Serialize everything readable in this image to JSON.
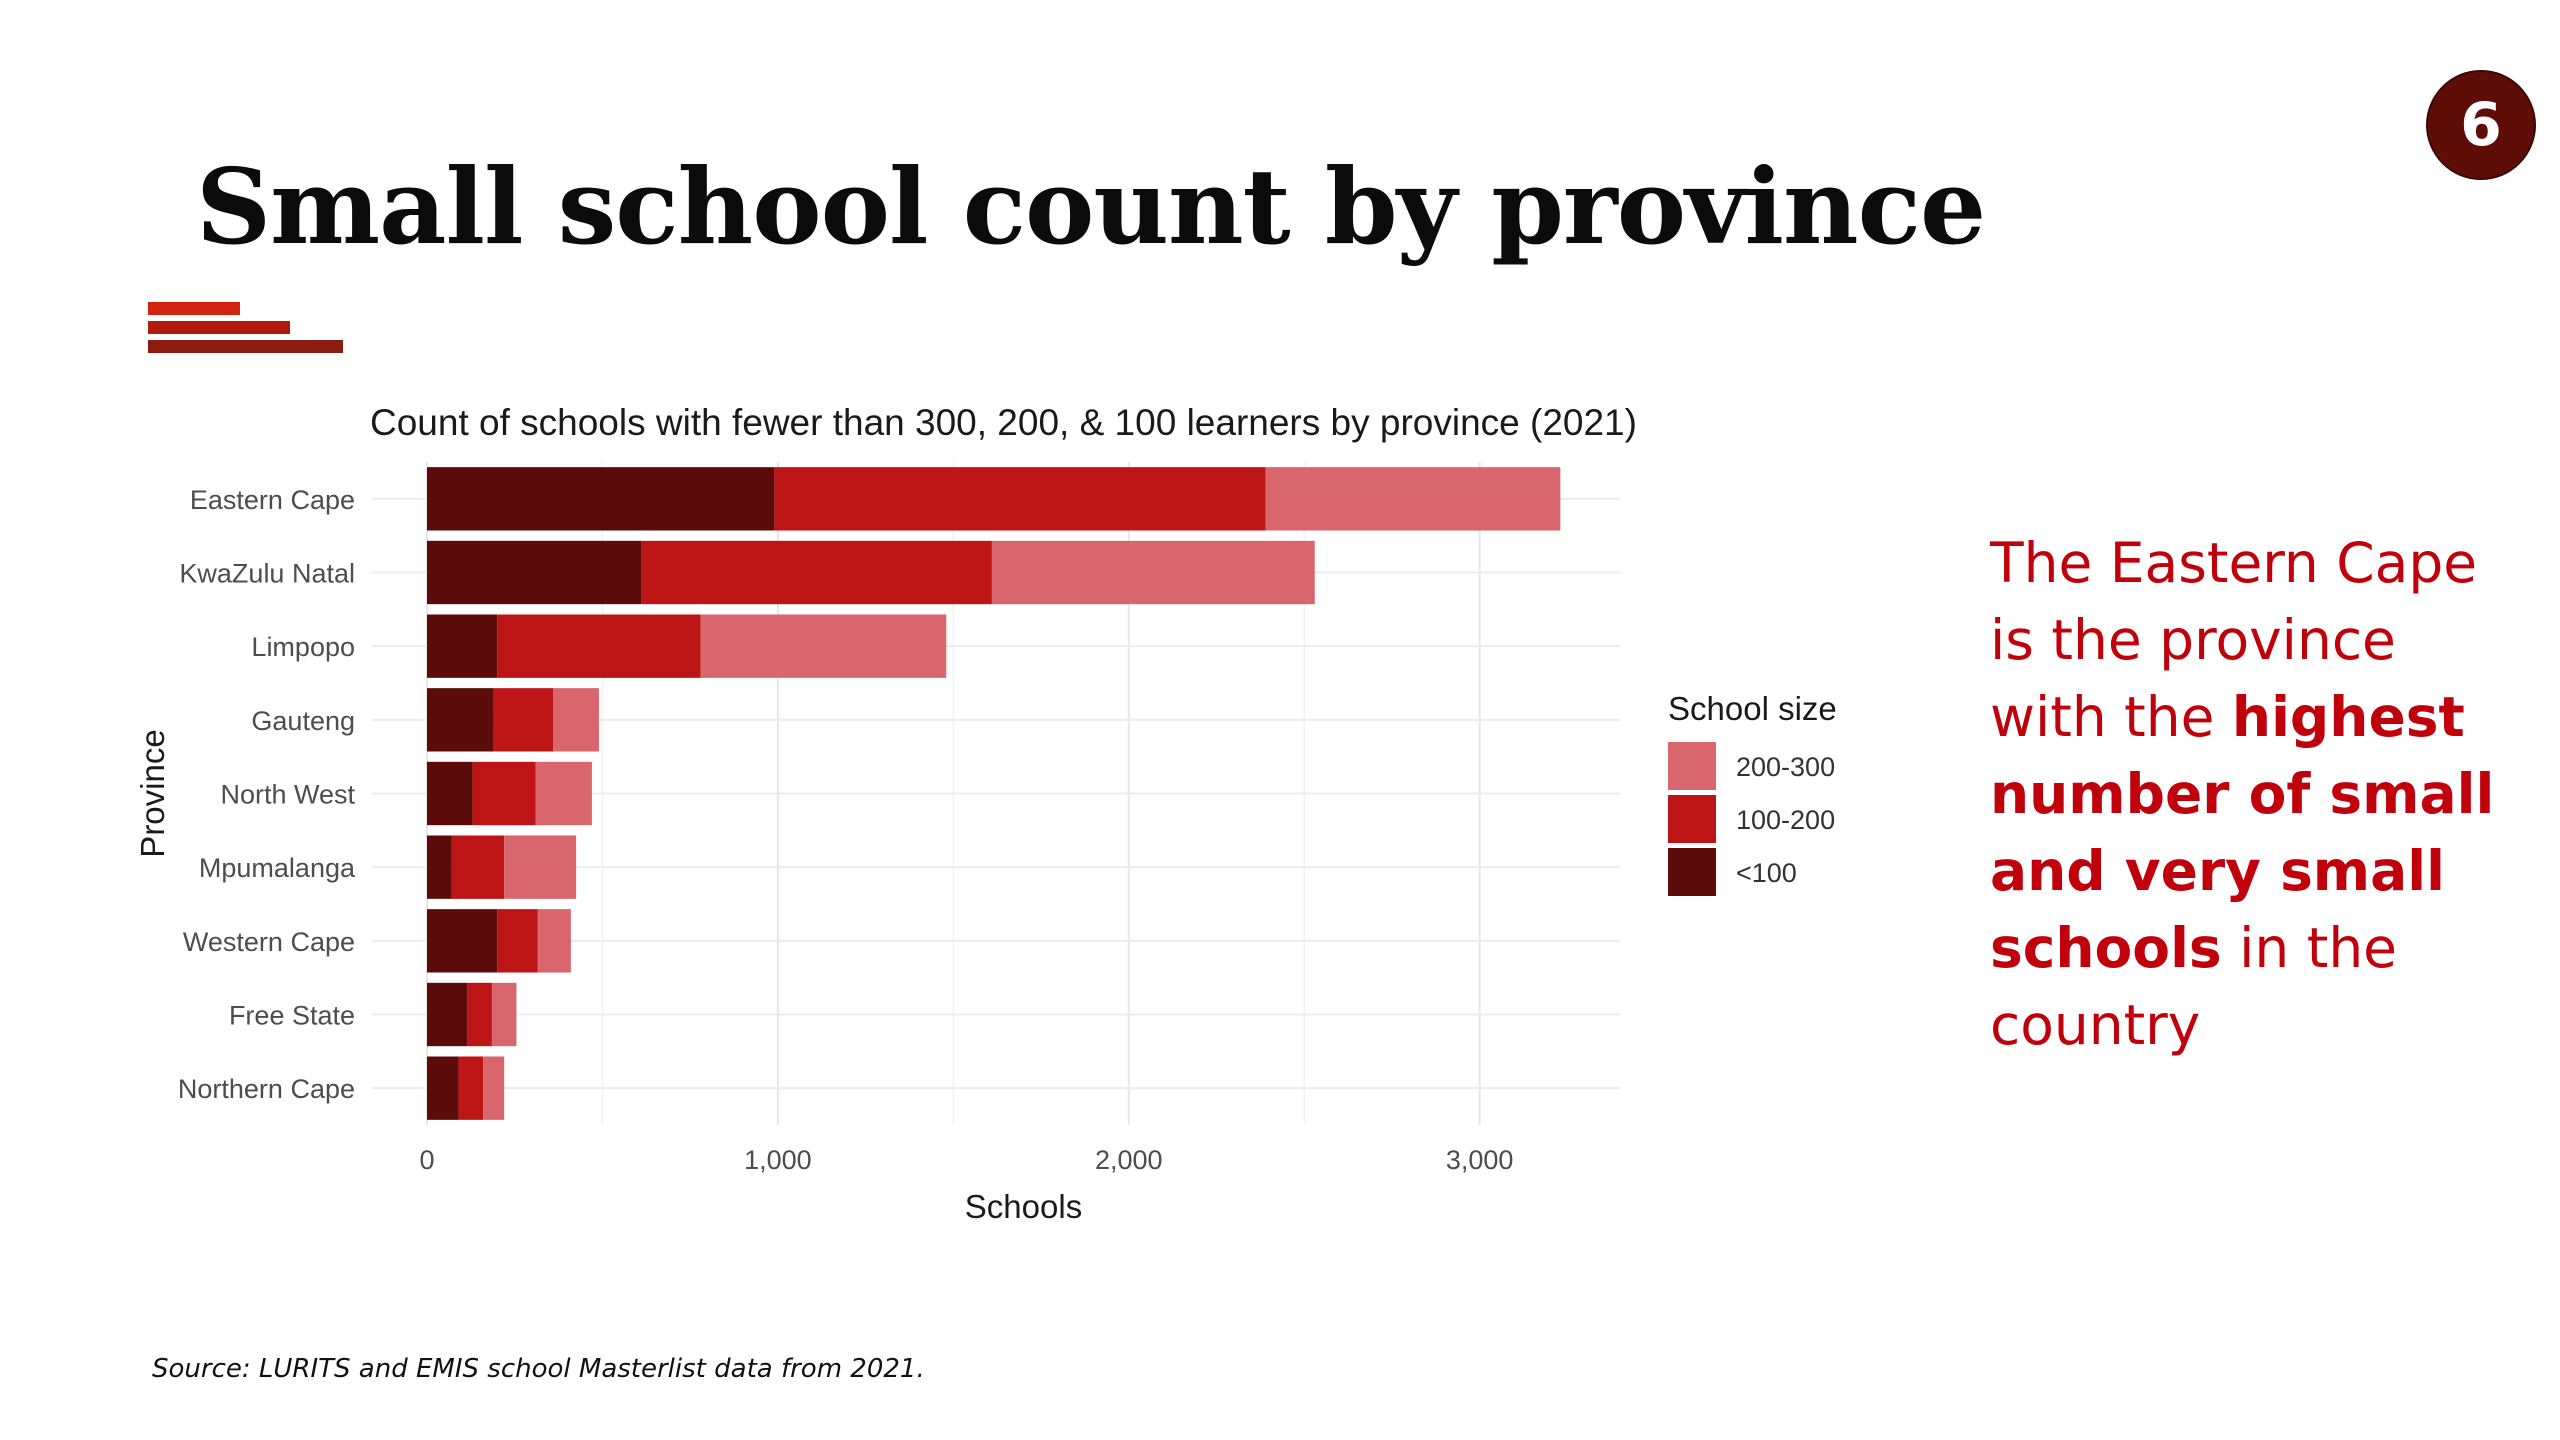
{
  "slide": {
    "title": "Small school count by province",
    "page_number": "6",
    "source": "Source: LURITS and EMIS school Masterlist data from 2021."
  },
  "callout": {
    "parts": [
      {
        "text": "The Eastern Cape is the province with the ",
        "bold": false
      },
      {
        "text": "highest number of small and very small schools",
        "bold": true
      },
      {
        "text": " in the country",
        "bold": false
      }
    ]
  },
  "colors": {
    "accent_1": "#d2230f",
    "accent_2": "#b21a10",
    "accent_3": "#8c1c10",
    "badge": "#5e0e06",
    "callout_text": "#c0000a"
  },
  "chart_data": {
    "type": "bar",
    "orientation": "horizontal",
    "stacked": true,
    "title": "Count of schools with fewer than 300, 200, & 100 learners by province (2021)",
    "xlabel": "Schools",
    "ylabel": "Province",
    "xlim": [
      0,
      3400
    ],
    "x_ticks": [
      0,
      1000,
      2000,
      3000
    ],
    "x_tick_labels": [
      "0",
      "1,000",
      "2,000",
      "3,000"
    ],
    "grid": true,
    "legend_title": "School size",
    "legend_position": "right",
    "categories": [
      "Eastern Cape",
      "KwaZulu Natal",
      "Limpopo",
      "Gauteng",
      "North West",
      "Mpumalanga",
      "Western Cape",
      "Free State",
      "Northern Cape"
    ],
    "series": [
      {
        "name": "<100",
        "color": "#5c0b0b",
        "values": [
          990,
          610,
          200,
          190,
          130,
          70,
          200,
          115,
          90
        ]
      },
      {
        "name": "100-200",
        "color": "#bd1515",
        "values": [
          1400,
          1000,
          580,
          170,
          180,
          150,
          115,
          70,
          70
        ]
      },
      {
        "name": "200-300",
        "color": "#d9656d",
        "values": [
          840,
          920,
          700,
          130,
          160,
          205,
          95,
          70,
          60
        ]
      }
    ],
    "legend_order": [
      "200-300",
      "100-200",
      "<100"
    ]
  }
}
